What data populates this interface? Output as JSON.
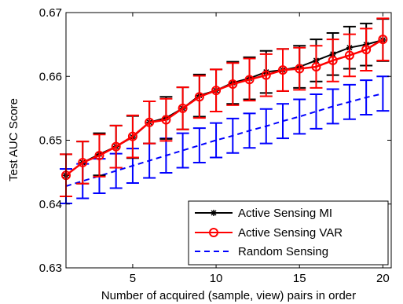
{
  "chart_data": {
    "type": "line",
    "title": "",
    "xlabel": "Number of acquired (sample, view) pairs in order",
    "ylabel": "Test AUC Score",
    "xlim": [
      1,
      20.5
    ],
    "ylim": [
      0.63,
      0.67
    ],
    "xticks": [
      5,
      10,
      15,
      20
    ],
    "yticks": [
      0.63,
      0.64,
      0.65,
      0.66,
      0.67
    ],
    "ytick_labels": [
      "0.63",
      "0.64",
      "0.65",
      "0.66",
      "0.67"
    ],
    "grid": false,
    "legend_position": "bottom-right",
    "x": [
      1,
      2,
      3,
      4,
      5,
      6,
      7,
      8,
      9,
      10,
      11,
      12,
      13,
      14,
      15,
      16,
      17,
      18,
      19,
      20
    ],
    "series": [
      {
        "name": "Active Sensing MI",
        "color": "#000000",
        "marker": "asterisk",
        "line_style": "solid",
        "values": [
          0.6445,
          0.6465,
          0.6478,
          0.649,
          0.6505,
          0.6528,
          0.6535,
          0.655,
          0.657,
          0.6578,
          0.659,
          0.6597,
          0.6607,
          0.661,
          0.6615,
          0.6625,
          0.6635,
          0.6645,
          0.665,
          0.6657
        ],
        "error": [
          0.0033,
          0.0033,
          0.0033,
          0.0033,
          0.0033,
          0.0033,
          0.0033,
          0.0033,
          0.0033,
          0.0033,
          0.0033,
          0.0033,
          0.0033,
          0.0033,
          0.0033,
          0.0033,
          0.0033,
          0.0033,
          0.0033,
          0.0033
        ]
      },
      {
        "name": "Active Sensing VAR",
        "color": "#ff0000",
        "marker": "circle",
        "line_style": "solid",
        "values": [
          0.6445,
          0.6465,
          0.6476,
          0.649,
          0.6506,
          0.6528,
          0.6532,
          0.655,
          0.6568,
          0.6578,
          0.6588,
          0.6595,
          0.6602,
          0.661,
          0.6612,
          0.6615,
          0.6625,
          0.6633,
          0.6642,
          0.6658
        ],
        "error": [
          0.0033,
          0.0033,
          0.0033,
          0.0033,
          0.0033,
          0.0033,
          0.0033,
          0.0033,
          0.0033,
          0.0033,
          0.0033,
          0.0033,
          0.0033,
          0.0033,
          0.0033,
          0.0033,
          0.0033,
          0.0033,
          0.0033,
          0.0033
        ]
      },
      {
        "name": "Random Sensing",
        "color": "#0000ff",
        "marker": "none",
        "line_style": "dashed",
        "values": [
          0.6428,
          0.6436,
          0.6444,
          0.6452,
          0.646,
          0.6468,
          0.6476,
          0.6484,
          0.6492,
          0.65,
          0.6507,
          0.6515,
          0.6522,
          0.653,
          0.6537,
          0.6545,
          0.6553,
          0.656,
          0.6567,
          0.6573
        ],
        "error": [
          0.0027,
          0.0027,
          0.0027,
          0.0027,
          0.0027,
          0.0027,
          0.0027,
          0.0027,
          0.0027,
          0.0027,
          0.0027,
          0.0027,
          0.0027,
          0.0027,
          0.0027,
          0.0027,
          0.0027,
          0.0027,
          0.0027,
          0.0027
        ]
      }
    ]
  }
}
